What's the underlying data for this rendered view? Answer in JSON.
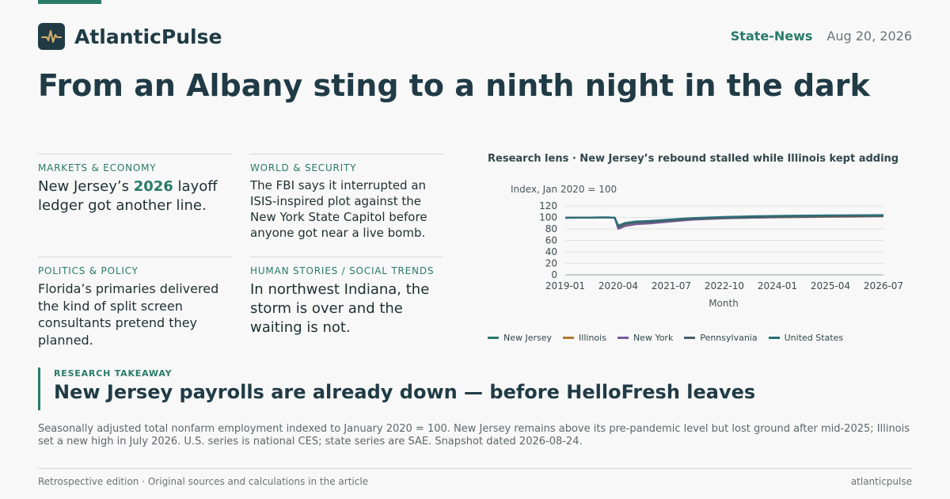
{
  "brand": {
    "name": "AtlanticPulse",
    "logo_icon": "pulse-wave-icon"
  },
  "header": {
    "category": "State-News",
    "date": "Aug 20, 2026"
  },
  "headline": "From an Albany sting to a ninth night in the dark",
  "cards": [
    {
      "kicker": "MARKETS & ECONOMY",
      "text_pre": "New Jersey’s ",
      "text_highlight": "2026",
      "text_post": " layoff ledger got another line."
    },
    {
      "kicker": "WORLD & SECURITY",
      "text": "The FBI says it interrupted an ISIS-inspired plot against the New York State Capitol before anyone got near a live bomb."
    },
    {
      "kicker": "POLITICS & POLICY",
      "text": "Florida’s primaries delivered the kind of split screen consultants pretend they planned."
    },
    {
      "kicker": "HUMAN STORIES / SOCIAL TRENDS",
      "text": "In northwest Indiana, the storm is over and the waiting is not."
    }
  ],
  "chart_data": {
    "type": "line",
    "title": "Research lens · New Jersey’s rebound stalled while Illinois kept adding",
    "ylabel": "Index, Jan 2020 = 100",
    "xlabel": "Month",
    "x_ticks": [
      "2019-01",
      "2020-04",
      "2021-07",
      "2022-10",
      "2024-01",
      "2025-04",
      "2026-07"
    ],
    "y_ticks": [
      0,
      20,
      40,
      60,
      80,
      100,
      120
    ],
    "ylim": [
      0,
      120
    ],
    "x_range": [
      "2019-01",
      "2026-07"
    ],
    "x": [
      "2019-01",
      "2020-01",
      "2020-03",
      "2020-04",
      "2020-06",
      "2020-09",
      "2021-01",
      "2021-07",
      "2022-01",
      "2022-10",
      "2023-06",
      "2024-01",
      "2024-10",
      "2025-04",
      "2025-10",
      "2026-03",
      "2026-07"
    ],
    "series": [
      {
        "name": "New Jersey",
        "color": "#2a7a6a",
        "values": [
          99.5,
          100,
          99.6,
          82,
          88,
          91,
          92,
          95,
          98,
          100,
          101,
          102,
          102.6,
          103.2,
          103,
          102.9,
          102.8
        ]
      },
      {
        "name": "Illinois",
        "color": "#b07a2a",
        "values": [
          99.6,
          100,
          99.5,
          83,
          88,
          90.5,
          91.5,
          94,
          96.5,
          98.5,
          99.5,
          100,
          100.5,
          101,
          101.2,
          101.6,
          102
        ]
      },
      {
        "name": "New York",
        "color": "#7a5a9a",
        "values": [
          99.4,
          100,
          99.4,
          80,
          85,
          88,
          89.5,
          93,
          96,
          98.5,
          99.5,
          100.5,
          101,
          101.5,
          101.8,
          102,
          102.2
        ]
      },
      {
        "name": "Pennsylvania",
        "color": "#4a5e6a",
        "values": [
          99.5,
          100,
          99.5,
          83,
          88.5,
          91,
          92,
          94.5,
          97,
          99,
          100,
          100.8,
          101.3,
          101.8,
          102,
          102.2,
          102.4
        ]
      },
      {
        "name": "United States",
        "color": "#2a6e7a",
        "values": [
          99.2,
          100,
          99.7,
          86,
          90.5,
          93,
          94,
          96.5,
          99,
          101,
          102,
          102.7,
          103.3,
          103.7,
          103.9,
          104,
          104.1
        ]
      }
    ],
    "legend_position": "bottom",
    "grid": true
  },
  "takeaway": {
    "kicker": "RESEARCH TAKEAWAY",
    "headline": "New Jersey payrolls are already down — before HelloFresh leaves"
  },
  "note": "Seasonally adjusted total nonfarm employment indexed to January 2020 = 100. New Jersey remains above its pre-pandemic level but lost ground after mid-2025; Illinois set a new high in July 2026. U.S. series is national CES; state series are SAE. Snapshot dated 2026-08-24.",
  "footer": {
    "left": "Retrospective edition · Original sources and calculations in the article",
    "right": "atlanticpulse"
  },
  "colors": {
    "accent": "#2a7a6a",
    "ink": "#203b46"
  }
}
